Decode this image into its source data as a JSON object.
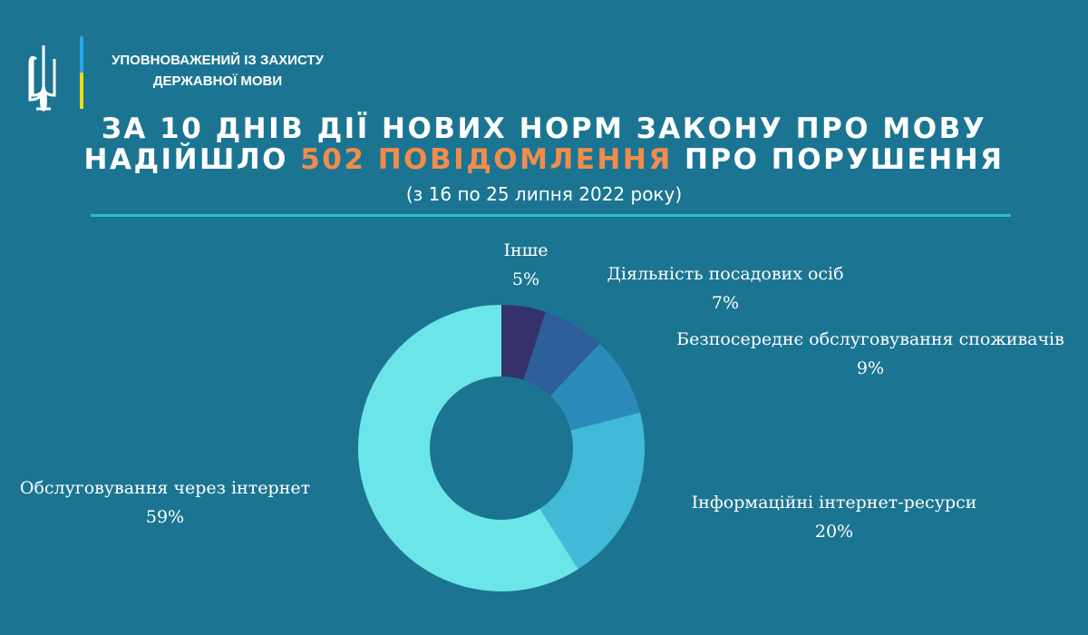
{
  "header": {
    "org_line1": "УПОВНОВАЖЕНИЙ ІЗ ЗАХИСТУ",
    "org_line2": "ДЕРЖАВНОЇ МОВИ",
    "logo": "trident-emblem-icon"
  },
  "title": {
    "line1": "ЗА 10 ДНІВ ДІЇ НОВИХ НОРМ ЗАКОНУ ПРО МОВУ",
    "line2_pre": "НАДІЙШЛО ",
    "line2_highlight": "502 ПОВІДОМЛЕННЯ",
    "line2_post": " ПРО ПОРУШЕННЯ",
    "subtitle": "(з 16 по 25 липня 2022 року)"
  },
  "colors": {
    "background": "#1b7592",
    "highlight": "#f28c4b",
    "rule": "#27c0c6"
  },
  "chart_data": {
    "type": "pie",
    "donut": true,
    "categories": [
      "Інше",
      "Діяльність посадових осіб",
      "Безпосереднє обслуговування споживачів",
      "Інформаційні інтернет-ресурси",
      "Обслуговування через інтернет"
    ],
    "values": [
      5,
      7,
      9,
      20,
      59
    ],
    "labels": [
      "5%",
      "7%",
      "9%",
      "20%",
      "59%"
    ],
    "colors": [
      "#35326b",
      "#2e5f9b",
      "#2a8bbb",
      "#42b9d6",
      "#6ce5e9"
    ]
  }
}
